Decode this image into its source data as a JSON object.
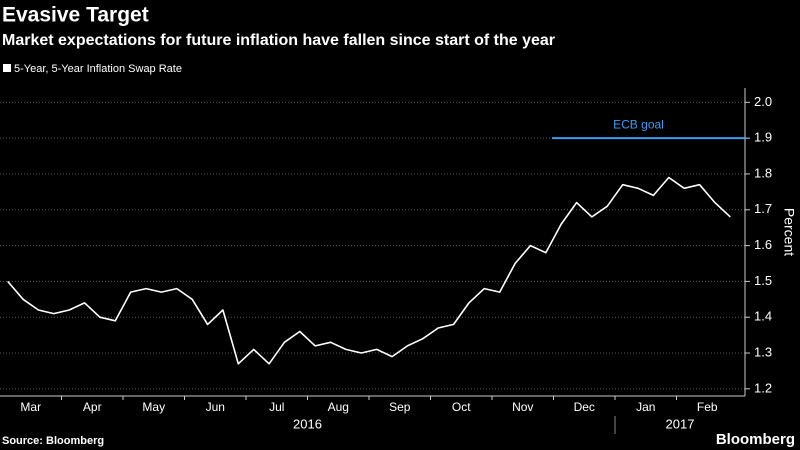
{
  "chart_data": {
    "type": "line",
    "title": "Evasive Target",
    "subtitle": "Market expectations for future inflation have fallen since start of the year",
    "y_label": "Percent",
    "source": "Source: Bloomberg",
    "brand": "Bloomberg",
    "categories": [
      null,
      "Mar",
      null,
      null,
      null,
      "Apr",
      null,
      null,
      null,
      "May",
      null,
      null,
      null,
      "Jun",
      null,
      null,
      null,
      "Jul",
      null,
      null,
      null,
      "Aug",
      null,
      null,
      null,
      "Sep",
      null,
      null,
      null,
      "Oct",
      null,
      null,
      null,
      "Nov",
      null,
      null,
      null,
      "Dec",
      null,
      null,
      null,
      "Jan",
      null,
      null,
      null,
      "Feb",
      null,
      null
    ],
    "year_labels": [
      "2016",
      "2017"
    ],
    "series": [
      {
        "name": "5-Year, 5-Year Inflation Swap Rate",
        "color": "#ffffff",
        "values": [
          1.5,
          1.45,
          1.42,
          1.41,
          1.42,
          1.44,
          1.4,
          1.39,
          1.47,
          1.48,
          1.47,
          1.48,
          1.45,
          1.38,
          1.42,
          1.27,
          1.31,
          1.27,
          1.33,
          1.36,
          1.32,
          1.33,
          1.31,
          1.3,
          1.31,
          1.29,
          1.32,
          1.34,
          1.37,
          1.38,
          1.44,
          1.48,
          1.47,
          1.55,
          1.6,
          1.58,
          1.66,
          1.72,
          1.68,
          1.71,
          1.77,
          1.76,
          1.74,
          1.79,
          1.76,
          1.77,
          1.72,
          1.68
        ]
      }
    ],
    "reference_line": {
      "label": "ECB goal",
      "value": 1.9,
      "color": "#3d9df2"
    },
    "ylim": [
      1.18,
      2.04
    ],
    "yticks": [
      1.2,
      1.3,
      1.4,
      1.5,
      1.6,
      1.7,
      1.8,
      1.9,
      {
        "value": 2,
        "label": "2.0"
      }
    ],
    "grid": true
  }
}
